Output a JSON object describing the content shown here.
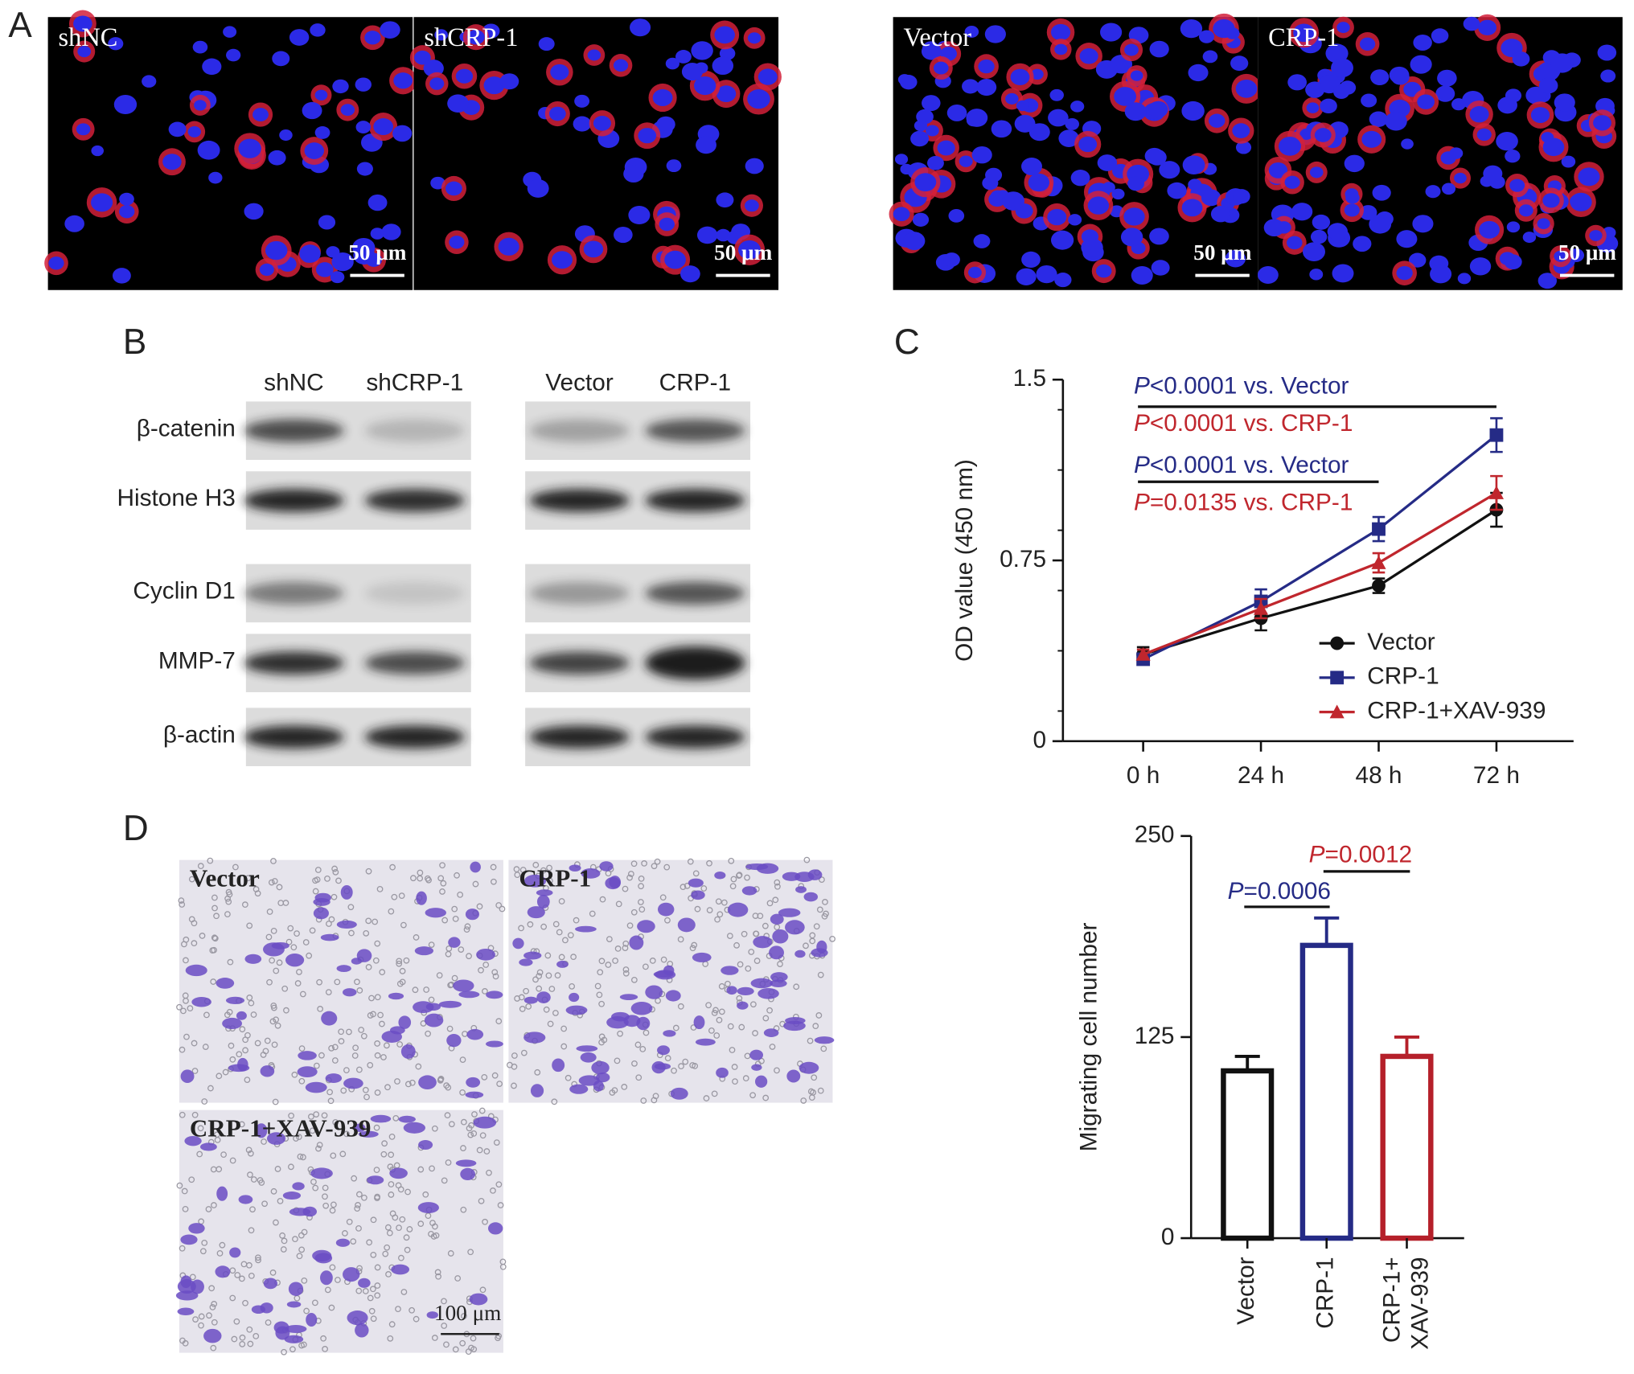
{
  "panel_letters": [
    "A",
    "B",
    "C",
    "D"
  ],
  "immunofluorescence": {
    "images": [
      {
        "label": "shNC",
        "scale": "50 μm"
      },
      {
        "label": "shCRP-1",
        "scale": "50 μm"
      },
      {
        "label": "Vector",
        "scale": "50 μm"
      },
      {
        "label": "CRP-1",
        "scale": "50 μm"
      }
    ]
  },
  "western_blot": {
    "columns": [
      "shNC",
      "shCRP-1",
      "Vector",
      "CRP-1"
    ],
    "rows": [
      "β-catenin",
      "Histone H3",
      "Cyclin D1",
      "MMP-7",
      "β-actin"
    ]
  },
  "transwell": {
    "images": [
      {
        "label": "Vector"
      },
      {
        "label": "CRP-1"
      },
      {
        "label": "CRP-1+XAV-939",
        "scale": "100 μm"
      }
    ]
  },
  "chart_data": [
    {
      "type": "line",
      "ylabel": "OD value (450 nm)",
      "categories": [
        "0 h",
        "24 h",
        "48 h",
        "72 h"
      ],
      "ylim": [
        0,
        1.5
      ],
      "yticks": [
        0,
        0.75,
        1.5
      ],
      "legend": "lower right",
      "series": [
        {
          "name": "Vector",
          "color": "#111111",
          "marker": "circle",
          "values": [
            0.36,
            0.51,
            0.645,
            0.96
          ],
          "errors": [
            0.03,
            0.05,
            0.03,
            0.07
          ]
        },
        {
          "name": "CRP-1",
          "color": "#252b86",
          "marker": "square",
          "values": [
            0.34,
            0.58,
            0.88,
            1.27
          ],
          "errors": [
            0.02,
            0.05,
            0.05,
            0.07
          ]
        },
        {
          "name": "CRP-1+XAV-939",
          "color": "#c0262d",
          "marker": "triangle",
          "values": [
            0.36,
            0.55,
            0.74,
            1.03
          ],
          "errors": [
            0.02,
            0.04,
            0.04,
            0.07
          ]
        }
      ],
      "annotations": [
        {
          "text": "P<0.0001 vs. Vector",
          "color": "#252b86"
        },
        {
          "text": "P<0.0001 vs. CRP-1",
          "color": "#c0262d"
        },
        {
          "text": "P<0.0001 vs. Vector",
          "color": "#252b86"
        },
        {
          "text": "P=0.0135 vs. CRP-1",
          "color": "#c0262d"
        }
      ]
    },
    {
      "type": "bar",
      "ylabel": "Migrating cell number",
      "categories": [
        "Vector",
        "CRP-1",
        "CRP-1+ XAV-939"
      ],
      "ylim": [
        0,
        250
      ],
      "yticks": [
        0,
        125,
        250
      ],
      "colors": [
        "#111111",
        "#252b86",
        "#b5202a"
      ],
      "values": [
        104,
        182,
        113
      ],
      "errors": [
        9,
        17,
        12
      ],
      "annotations": [
        {
          "text": "P=0.0006",
          "color": "#252b86"
        },
        {
          "text": "P=0.0012",
          "color": "#c0262d"
        }
      ]
    }
  ]
}
